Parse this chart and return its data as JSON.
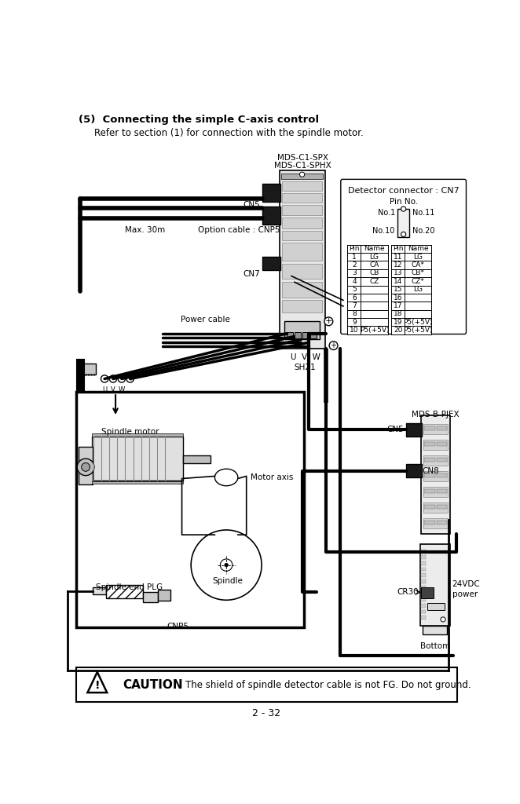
{
  "title_bold": "(5)  Connecting the simple C-axis control",
  "subtitle": "Refer to section (1) for connection with the spindle motor.",
  "mds_label1": "MDS-C1-SPX",
  "mds_label2": "MDS-C1-SPHX",
  "detector_title": "Detector connector : CN7",
  "pin_no_label": "Pin No.",
  "no1": "No.1",
  "no10": "No.10",
  "no11": "No.11",
  "no20": "No.20",
  "table_left_rows": [
    [
      "1",
      "LG"
    ],
    [
      "2",
      "CA"
    ],
    [
      "3",
      "CB"
    ],
    [
      "4",
      "CZ"
    ],
    [
      "5",
      ""
    ],
    [
      "6",
      ""
    ],
    [
      "7",
      ""
    ],
    [
      "8",
      ""
    ],
    [
      "9",
      ""
    ],
    [
      "10",
      "P5(+5V)"
    ]
  ],
  "table_right_rows": [
    [
      "11",
      "LG"
    ],
    [
      "12",
      "CA*"
    ],
    [
      "13",
      "CB*"
    ],
    [
      "14",
      "CZ*"
    ],
    [
      "15",
      "LG"
    ],
    [
      "16",
      ""
    ],
    [
      "17",
      ""
    ],
    [
      "18",
      ""
    ],
    [
      "19",
      "P5(+5V)"
    ],
    [
      "20",
      "P5(+5V)"
    ]
  ],
  "cn5_label": "CN5",
  "cn7_label": "CN7",
  "cn5b_label": "CN5",
  "cn8_label": "CN8",
  "uvw_label": "U  V  W",
  "sh21_label": "SH21",
  "mds_b_label": "MDS-B-PJEX",
  "power_cable_label": "Power cable",
  "max30m_label": "Max. 30m",
  "option_cable_label": "Option cable : CNP5",
  "motor_axis_label": "Motor axis",
  "spindle_label": "Spindle",
  "spindle_motor_label": "Spindle motor",
  "spindle_end_plg_label": "Spindle end PLG",
  "cnp5_label": "CNP5",
  "cr30_label": "CR30",
  "vdc_label": "24VDC\npower",
  "bottom_label": "Bottom",
  "caution_text": "The shield of spindle detector cable is not FG. Do not ground.",
  "page_label": "2 - 32",
  "bg_color": "#ffffff",
  "line_color": "#000000"
}
